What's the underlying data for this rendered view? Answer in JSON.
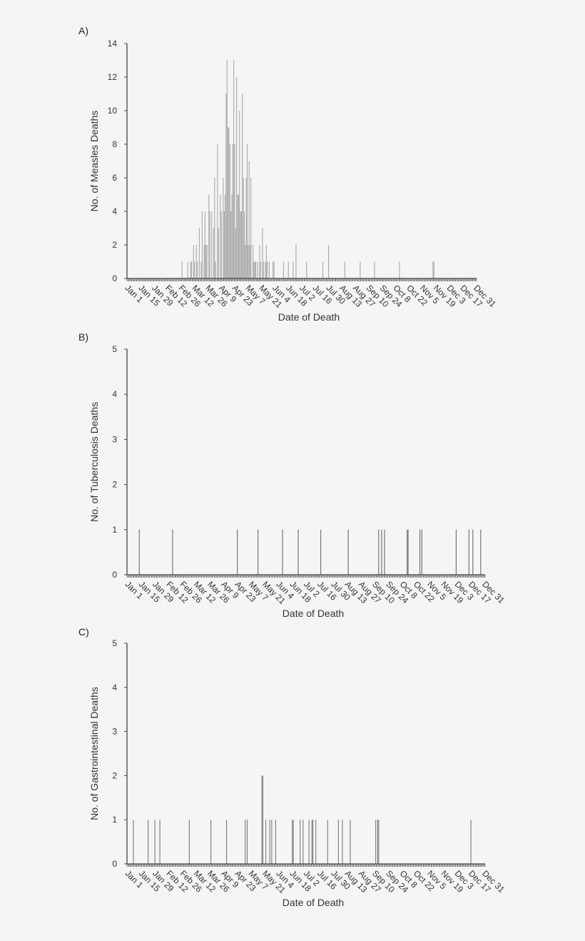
{
  "chart_data": [
    {
      "panel_label": "A)",
      "type": "bar",
      "xlabel": "Date of Death",
      "ylabel": "No. of Measles Deaths",
      "ylim": [
        0,
        14
      ],
      "yticks": [
        0,
        2,
        4,
        6,
        8,
        10,
        12,
        14
      ],
      "xticks": [
        "Jan 1",
        "Jan 15",
        "Jan 29",
        "Feb 12",
        "Feb 26",
        "Mar 12",
        "Mar 26",
        "Apr 9",
        "Apr 23",
        "May 7",
        "May 21",
        "Jun 4",
        "Jun 18",
        "Jul 2",
        "Jul 16",
        "Jul 30",
        "Aug 13",
        "Aug 27",
        "Sep 10",
        "Sep 24",
        "Oct 8",
        "Oct 22",
        "Nov 5",
        "Nov 19",
        "Dec 3",
        "Dec 17",
        "Dec 31"
      ],
      "bar_color": "#a8a8a8",
      "points": [
        [
          "Feb 27",
          1
        ],
        [
          "Mar 5",
          1
        ],
        [
          "Mar 8",
          1
        ],
        [
          "Mar 9",
          1
        ],
        [
          "Mar 11",
          2
        ],
        [
          "Mar 12",
          1
        ],
        [
          "Mar 14",
          2
        ],
        [
          "Mar 15",
          1
        ],
        [
          "Mar 17",
          3
        ],
        [
          "Mar 19",
          1
        ],
        [
          "Mar 20",
          4
        ],
        [
          "Mar 22",
          2
        ],
        [
          "Mar 23",
          4
        ],
        [
          "Mar 24",
          2
        ],
        [
          "Mar 25",
          2
        ],
        [
          "Mar 27",
          5
        ],
        [
          "Mar 28",
          4
        ],
        [
          "Mar 30",
          4
        ],
        [
          "Apr 1",
          3
        ],
        [
          "Apr 2",
          6
        ],
        [
          "Apr 3",
          1
        ],
        [
          "Apr 5",
          8
        ],
        [
          "Apr 6",
          3
        ],
        [
          "Apr 8",
          5
        ],
        [
          "Apr 9",
          4
        ],
        [
          "Apr 11",
          6
        ],
        [
          "Apr 12",
          4
        ],
        [
          "Apr 13",
          5
        ],
        [
          "Apr 14",
          11
        ],
        [
          "Apr 15",
          13
        ],
        [
          "Apr 16",
          9
        ],
        [
          "Apr 17",
          9
        ],
        [
          "Apr 18",
          8
        ],
        [
          "Apr 19",
          4
        ],
        [
          "Apr 20",
          5
        ],
        [
          "Apr 21",
          8
        ],
        [
          "Apr 22",
          13
        ],
        [
          "Apr 23",
          8
        ],
        [
          "Apr 24",
          3
        ],
        [
          "Apr 25",
          12
        ],
        [
          "Apr 26",
          5
        ],
        [
          "Apr 27",
          5
        ],
        [
          "Apr 28",
          10
        ],
        [
          "Apr 29",
          4
        ],
        [
          "Apr 30",
          4
        ],
        [
          "May 1",
          11
        ],
        [
          "May 2",
          6
        ],
        [
          "May 3",
          4
        ],
        [
          "May 4",
          2
        ],
        [
          "May 5",
          6
        ],
        [
          "May 6",
          8
        ],
        [
          "May 7",
          2
        ],
        [
          "May 8",
          7
        ],
        [
          "May 9",
          2
        ],
        [
          "May 10",
          6
        ],
        [
          "May 12",
          2
        ],
        [
          "May 13",
          1
        ],
        [
          "May 14",
          1
        ],
        [
          "May 15",
          1
        ],
        [
          "May 17",
          1
        ],
        [
          "May 19",
          2
        ],
        [
          "May 20",
          1
        ],
        [
          "May 22",
          3
        ],
        [
          "May 23",
          1
        ],
        [
          "May 25",
          1
        ],
        [
          "May 26",
          2
        ],
        [
          "May 27",
          1
        ],
        [
          "May 29",
          1
        ],
        [
          "Jun 2",
          1
        ],
        [
          "Jun 3",
          1
        ],
        [
          "Jun 13",
          1
        ],
        [
          "Jun 18",
          1
        ],
        [
          "Jun 23",
          1
        ],
        [
          "Jun 26",
          2
        ],
        [
          "Jul 7",
          1
        ],
        [
          "Jul 24",
          1
        ],
        [
          "Jul 30",
          2
        ],
        [
          "Aug 16",
          1
        ],
        [
          "Sep 1",
          1
        ],
        [
          "Sep 16",
          1
        ],
        [
          "Oct 12",
          1
        ],
        [
          "Nov 16",
          1
        ],
        [
          "Nov 17",
          1
        ]
      ]
    },
    {
      "panel_label": "B)",
      "type": "bar",
      "xlabel": "Date of Death",
      "ylabel": "No. of Tuberculosis Deaths",
      "ylim": [
        0,
        5
      ],
      "yticks": [
        0,
        1,
        2,
        3,
        4,
        5
      ],
      "xticks": [
        "Jan 1",
        "Jan 15",
        "Jan 29",
        "Feb 12",
        "Feb 26",
        "Mar 12",
        "Mar 26",
        "Apr 9",
        "Apr 23",
        "May 7",
        "May 21",
        "Jun 4",
        "Jun 18",
        "Jul 2",
        "Jul 16",
        "Jul 30",
        "Aug 13",
        "Aug 27",
        "Sep 10",
        "Sep 24",
        "Oct 8",
        "Oct 22",
        "Nov 5",
        "Nov 19",
        "Dec 3",
        "Dec 17",
        "Dec 31"
      ],
      "bar_color": "#6a6a6a",
      "points": [
        [
          "Jan 13",
          1
        ],
        [
          "Feb 16",
          1
        ],
        [
          "Apr 23",
          1
        ],
        [
          "May 14",
          1
        ],
        [
          "Jun 8",
          1
        ],
        [
          "Jun 24",
          1
        ],
        [
          "Jul 17",
          1
        ],
        [
          "Aug 14",
          1
        ],
        [
          "Sep 14",
          1
        ],
        [
          "Sep 17",
          1
        ],
        [
          "Sep 20",
          1
        ],
        [
          "Oct 13",
          1
        ],
        [
          "Oct 14",
          1
        ],
        [
          "Oct 26",
          1
        ],
        [
          "Oct 28",
          1
        ],
        [
          "Dec 2",
          1
        ],
        [
          "Dec 15",
          1
        ],
        [
          "Dec 19",
          1
        ],
        [
          "Dec 27",
          1
        ]
      ]
    },
    {
      "panel_label": "C)",
      "type": "bar",
      "xlabel": "Date of Death",
      "ylabel": "No. of Gastrointestinal Deaths",
      "ylim": [
        0,
        5
      ],
      "yticks": [
        0,
        1,
        2,
        3,
        4,
        5
      ],
      "xticks": [
        "Jan 1",
        "Jan 15",
        "Jan 29",
        "Feb 12",
        "Feb 26",
        "Mar 12",
        "Mar 26",
        "Apr 9",
        "Apr 23",
        "May 7",
        "May 21",
        "Jun 4",
        "Jun 18",
        "Jul 2",
        "Jul 16",
        "Jul 30",
        "Aug 13",
        "Aug 27",
        "Sep 10",
        "Sep 24",
        "Oct 8",
        "Oct 22",
        "Nov 5",
        "Nov 19",
        "Dec 3",
        "Dec 17",
        "Dec 31"
      ],
      "bar_color": "#7a7a7a",
      "points": [
        [
          "Jan 7",
          1
        ],
        [
          "Jan 22",
          1
        ],
        [
          "Jan 29",
          1
        ],
        [
          "Feb 3",
          1
        ],
        [
          "Mar 5",
          1
        ],
        [
          "Mar 27",
          1
        ],
        [
          "Apr 12",
          1
        ],
        [
          "May 1",
          1
        ],
        [
          "May 3",
          1
        ],
        [
          "May 18",
          2
        ],
        [
          "May 19",
          2
        ],
        [
          "May 22",
          1
        ],
        [
          "May 26",
          1
        ],
        [
          "May 28",
          1
        ],
        [
          "Jun 1",
          1
        ],
        [
          "Jun 18",
          1
        ],
        [
          "Jun 19",
          1
        ],
        [
          "Jun 26",
          1
        ],
        [
          "Jun 29",
          1
        ],
        [
          "Jul 5",
          1
        ],
        [
          "Jul 8",
          1
        ],
        [
          "Jul 9",
          1
        ],
        [
          "Jul 12",
          1
        ],
        [
          "Jul 24",
          1
        ],
        [
          "Aug 4",
          1
        ],
        [
          "Aug 8",
          1
        ],
        [
          "Aug 16",
          1
        ],
        [
          "Sep 11",
          1
        ],
        [
          "Sep 13",
          1
        ],
        [
          "Sep 14",
          1
        ],
        [
          "Dec 17",
          1
        ]
      ]
    }
  ]
}
